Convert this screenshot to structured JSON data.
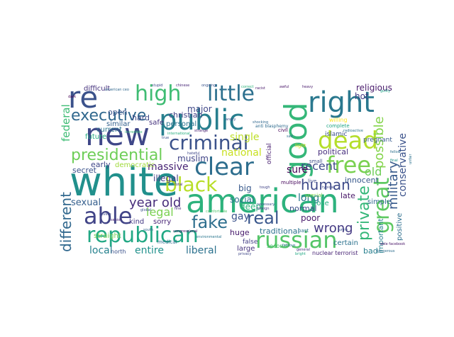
{
  "words": [
    {
      "text": "re",
      "color": "#3b528b"
    },
    {
      "text": "new",
      "color": "#3f4788"
    },
    {
      "text": "white",
      "color": "#21908c"
    },
    {
      "text": "american",
      "color": "#2db27d"
    },
    {
      "text": "public",
      "color": "#277f8e"
    },
    {
      "text": "good",
      "color": "#35b779"
    },
    {
      "text": "right",
      "color": "#2a788e"
    },
    {
      "text": "high",
      "color": "#3fbc73"
    },
    {
      "text": "little",
      "color": "#2d708e"
    },
    {
      "text": "criminal",
      "color": "#3b528b"
    },
    {
      "text": "dead",
      "color": "#b5de2b"
    },
    {
      "text": "free",
      "color": "#7ad151"
    },
    {
      "text": "clear",
      "color": "#2e6e8e"
    },
    {
      "text": "executive",
      "color": "#31688e"
    },
    {
      "text": "presidential",
      "color": "#6ece58"
    },
    {
      "text": "black",
      "color": "#b8de29"
    },
    {
      "text": "able",
      "color": "#414487"
    },
    {
      "text": "republican",
      "color": "#22a884"
    },
    {
      "text": "russian",
      "color": "#54c568"
    },
    {
      "text": "fake",
      "color": "#2e6f8e"
    },
    {
      "text": "great",
      "color": "#5ec962"
    },
    {
      "text": "human",
      "color": "#3e4a89"
    },
    {
      "text": "real",
      "color": "#39568c"
    },
    {
      "text": "different",
      "color": "#31688e"
    },
    {
      "text": "private",
      "color": "#35b779"
    },
    {
      "text": "military",
      "color": "#375a8c"
    },
    {
      "text": "possible",
      "color": "#84d44b"
    },
    {
      "text": "year old",
      "color": "#472d7b"
    },
    {
      "text": "legal",
      "color": "#7ad151"
    },
    {
      "text": "wrong",
      "color": "#443983"
    },
    {
      "text": "gay",
      "color": "#3b528b"
    },
    {
      "text": "liberal",
      "color": "#2c728e"
    },
    {
      "text": "entire",
      "color": "#21918c"
    },
    {
      "text": "local",
      "color": "#26828e"
    },
    {
      "text": "sexual",
      "color": "#355f8d"
    },
    {
      "text": "federal",
      "color": "#3dbc74"
    },
    {
      "text": "massive",
      "color": "#482475"
    },
    {
      "text": "national",
      "color": "#c8e020"
    },
    {
      "text": "single",
      "color": "#bddf26"
    },
    {
      "text": "recent",
      "color": "#3e4a89"
    },
    {
      "text": "long",
      "color": "#2a788e"
    },
    {
      "text": "sure",
      "color": "#440154"
    },
    {
      "text": "old",
      "color": "#6ece58"
    },
    {
      "text": "conservative",
      "color": "#3b528b"
    },
    {
      "text": "religious",
      "color": "#48196b"
    },
    {
      "text": "hot",
      "color": "#443a83"
    },
    {
      "text": "major",
      "color": "#3f4788"
    },
    {
      "text": "open",
      "color": "#3a548c"
    },
    {
      "text": "hard",
      "color": "#3e4989"
    },
    {
      "text": "christian",
      "color": "#424186"
    },
    {
      "text": "safe",
      "color": "#46327e"
    },
    {
      "text": "similar",
      "color": "#34618d"
    },
    {
      "text": "current",
      "color": "#2a768e"
    },
    {
      "text": "future",
      "color": "#26ad81"
    },
    {
      "text": "personal",
      "color": "#2c738e"
    },
    {
      "text": "muslim",
      "color": "#414487"
    },
    {
      "text": "illegal",
      "color": "#433e85"
    },
    {
      "text": "big",
      "color": "#38598c"
    },
    {
      "text": "social",
      "color": "#2d708e"
    },
    {
      "text": "deep",
      "color": "#2fb47c"
    },
    {
      "text": "early",
      "color": "#3f4788"
    },
    {
      "text": "secret",
      "color": "#3b528b"
    },
    {
      "text": "democratic",
      "color": "#9fda3a"
    },
    {
      "text": "kind",
      "color": "#443983"
    },
    {
      "text": "straight",
      "color": "#73d056"
    },
    {
      "text": "sorry",
      "color": "#482677"
    },
    {
      "text": "huge",
      "color": "#481b6d"
    },
    {
      "text": "large",
      "color": "#46337e"
    },
    {
      "text": "traditional",
      "color": "#2c718e"
    },
    {
      "text": "poor",
      "color": "#481a6c"
    },
    {
      "text": "normal",
      "color": "#3d4d8a"
    },
    {
      "text": "political",
      "color": "#472f7d"
    },
    {
      "text": "late",
      "color": "#481668"
    },
    {
      "text": "innocent",
      "color": "#38588c"
    },
    {
      "text": "close",
      "color": "#28ae80"
    },
    {
      "text": "simple",
      "color": "#31678e"
    },
    {
      "text": "positive",
      "color": "#2e6f8e"
    },
    {
      "text": "important",
      "color": "#26828e"
    },
    {
      "text": "certain",
      "color": "#2c728e"
    },
    {
      "text": "bad",
      "color": "#277f8e"
    },
    {
      "text": "official",
      "color": "#481f70"
    },
    {
      "text": "islamic",
      "color": "#3c508b"
    },
    {
      "text": "pregnant",
      "color": "#375b8d"
    },
    {
      "text": "false",
      "color": "#433e85"
    },
    {
      "text": "second",
      "color": "#4ac16d"
    },
    {
      "text": "nuclear terrorist",
      "color": "#482475"
    },
    {
      "text": "north",
      "color": "#3b528b"
    },
    {
      "text": "medical",
      "color": "#2f6c8e"
    },
    {
      "text": "difficult",
      "color": "#46337e"
    },
    {
      "text": "willing",
      "color": "#fde725"
    },
    {
      "text": "complete",
      "color": "#21a585"
    },
    {
      "text": "civil",
      "color": "#440154"
    },
    {
      "text": "multiple",
      "color": "#46085c"
    },
    {
      "text": "special",
      "color": "#7fd34e"
    },
    {
      "text": "live",
      "color": "#3e4c8a"
    },
    {
      "text": "past",
      "color": "#2c728e"
    },
    {
      "text": "small",
      "color": "#3d4e8a"
    },
    {
      "text": "anti blasphemy",
      "color": "#2f6c8e"
    },
    {
      "text": "ongoing",
      "color": "#3a538b"
    },
    {
      "text": "shocking",
      "color": "#31688e"
    },
    {
      "text": "chinese",
      "color": "#482878"
    },
    {
      "text": "stupid",
      "color": "#3e4989"
    },
    {
      "text": "dark",
      "color": "#440154"
    },
    {
      "text": "correct",
      "color": "#2fb47c"
    },
    {
      "text": "true",
      "color": "#3a538b"
    },
    {
      "text": "international",
      "color": "#29af7f"
    },
    {
      "text": "strange",
      "color": "#482071"
    },
    {
      "text": "famous",
      "color": "#2d708e"
    },
    {
      "text": "typical",
      "color": "#3f4889"
    },
    {
      "text": "guilty",
      "color": "#20a386"
    },
    {
      "text": "general",
      "color": "#46327e"
    },
    {
      "text": "funny",
      "color": "#3b528b"
    },
    {
      "text": "foreign",
      "color": "#443983"
    },
    {
      "text": "awful",
      "color": "#481467"
    },
    {
      "text": "bright",
      "color": "#22a884"
    },
    {
      "text": "south",
      "color": "#31678e"
    },
    {
      "text": "congressional",
      "color": "#48186a"
    },
    {
      "text": "incredible",
      "color": "#38b977"
    },
    {
      "text": "privacy",
      "color": "#3f4788"
    },
    {
      "text": "dangerous",
      "color": "#2e6e8e"
    },
    {
      "text": "angry",
      "color": "#3b518b"
    },
    {
      "text": "hateful",
      "color": "#3f4889"
    },
    {
      "text": "sad",
      "color": "#2d718e"
    },
    {
      "text": "senior",
      "color": "#482475"
    },
    {
      "text": "environmental",
      "color": "#2a768e"
    },
    {
      "text": "comfortable",
      "color": "#50c46a"
    },
    {
      "text": "necessary",
      "color": "#3b528b"
    },
    {
      "text": "heavy",
      "color": "#48196b"
    },
    {
      "text": "radioactive",
      "color": "#2c728e"
    },
    {
      "text": "tough",
      "color": "#414487"
    },
    {
      "text": "final",
      "color": "#20928c"
    },
    {
      "text": "fellow",
      "color": "#2d708e"
    },
    {
      "text": "total",
      "color": "#46307e"
    },
    {
      "text": "severe",
      "color": "#3e4989"
    },
    {
      "text": "able facebook",
      "color": "#481467"
    },
    {
      "text": "fine",
      "color": "#46327e"
    },
    {
      "text": "light",
      "color": "#d8e219"
    },
    {
      "text": "global",
      "color": "#3b528b"
    },
    {
      "text": "american ceo",
      "color": "#31688e"
    },
    {
      "text": "racist",
      "color": "#48186a"
    },
    {
      "text": "unfair",
      "color": "#2c728e"
    }
  ]
}
